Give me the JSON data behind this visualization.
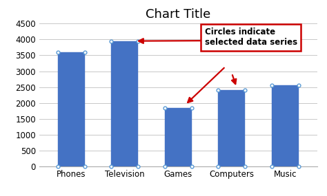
{
  "title": "Chart Title",
  "categories": [
    "Phones",
    "Television",
    "Games",
    "Computers",
    "Music"
  ],
  "values": [
    3600,
    3950,
    1850,
    2400,
    2550
  ],
  "bar_color": "#4472C4",
  "bar_edge_color": "#4472C4",
  "background_color": "#ffffff",
  "ylim": [
    0,
    4500
  ],
  "yticks": [
    0,
    500,
    1000,
    1500,
    2000,
    2500,
    3000,
    3500,
    4000,
    4500
  ],
  "grid_color": "#c8c8c8",
  "annotation_text": "Circles indicate\nselected data series",
  "annotation_box_color": "#ffffff",
  "annotation_box_edge": "#cc0000",
  "circle_color": "#5b9bd5",
  "arrow_color": "#cc0000",
  "title_fontsize": 13,
  "tick_fontsize": 8.5,
  "annotation_fontsize": 8.5,
  "figsize": [
    4.74,
    2.85
  ],
  "dpi": 100
}
